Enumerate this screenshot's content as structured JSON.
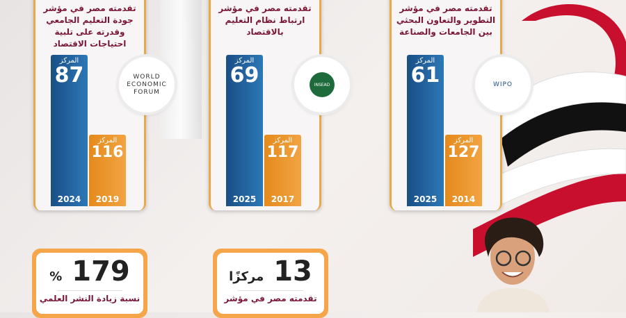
{
  "cards": [
    {
      "title": "تقدمته مصر في مؤشر جودة التعليم الجامعي وقدرته على تلبية احتياجات الاقتصاد",
      "rank_label": "المركز",
      "current_rank": "87",
      "current_year": "2024",
      "previous_rank": "116",
      "previous_year": "2019",
      "logo": "WORLD ECONOMIC FORUM"
    },
    {
      "title": "تقدمته مصر في مؤشر ارتباط نظام التعليم بالاقتصاد",
      "rank_label": "المركز",
      "current_rank": "69",
      "current_year": "2025",
      "previous_rank": "117",
      "previous_year": "2017",
      "logo": "INSEAD"
    },
    {
      "title": "تقدمته مصر في مؤشر التطوير والتعاون البحثي بين الجامعات والصناعة",
      "rank_label": "المركز",
      "current_rank": "61",
      "current_year": "2025",
      "previous_rank": "127",
      "previous_year": "2014",
      "logo": "WIPO"
    }
  ],
  "stats": [
    {
      "value": "179",
      "unit": "%",
      "text": "نسبة زيادة النشر العلمي"
    },
    {
      "value": "13",
      "unit": "مركزًا",
      "text": "تقدمته مصر في مؤشر"
    }
  ],
  "colors": {
    "blue": "#1a4e86",
    "orange": "#f2a442",
    "maroon": "#7a1736",
    "flag_red": "#c8102e",
    "flag_black": "#111111"
  }
}
